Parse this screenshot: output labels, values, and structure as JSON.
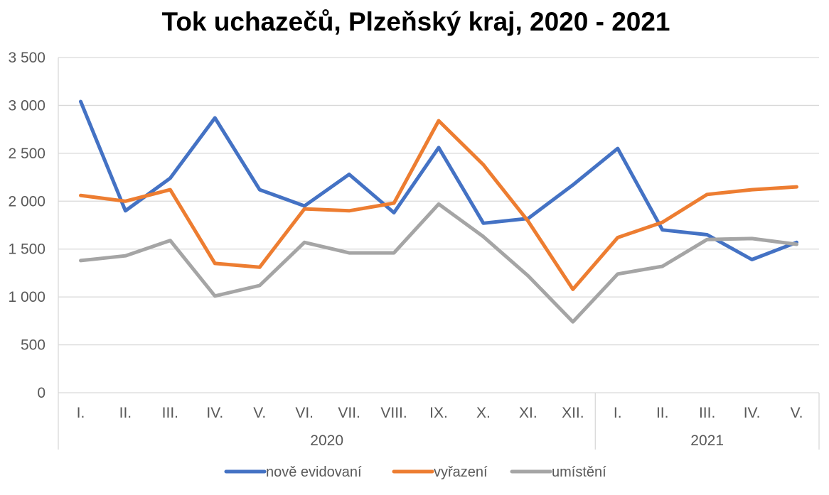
{
  "chart_data": {
    "type": "line",
    "title": "Tok uchazečů, Plzeňský kraj, 2020 - 2021",
    "xlabel": "",
    "ylabel": "",
    "ylim": [
      0,
      3500
    ],
    "y_ticks": [
      0,
      500,
      1000,
      1500,
      2000,
      2500,
      3000,
      3500
    ],
    "y_tick_labels": [
      "0",
      "500",
      "1 000",
      "1 500",
      "2 000",
      "2 500",
      "3 000",
      "3 500"
    ],
    "grid": true,
    "legend_position": "bottom",
    "categories": [
      "I.",
      "II.",
      "III.",
      "IV.",
      "V.",
      "VI.",
      "VII.",
      "VIII.",
      "IX.",
      "X.",
      "XI.",
      "XII.",
      "I.",
      "II.",
      "III.",
      "IV.",
      "V."
    ],
    "groups": [
      {
        "label": "2020",
        "count": 12
      },
      {
        "label": "2021",
        "count": 5
      }
    ],
    "series": [
      {
        "name": "nově evidovaní",
        "color": "#4472c4",
        "values": [
          3040,
          1900,
          2240,
          2870,
          2120,
          1950,
          2280,
          1880,
          2560,
          1770,
          1820,
          2170,
          2550,
          1700,
          1650,
          1390,
          1570
        ]
      },
      {
        "name": "vyřazení",
        "color": "#ed7d31",
        "values": [
          2060,
          2000,
          2120,
          1350,
          1310,
          1920,
          1900,
          1980,
          2840,
          2380,
          1790,
          1080,
          1620,
          1780,
          2070,
          2120,
          2150
        ]
      },
      {
        "name": "umístění",
        "color": "#a5a5a5",
        "values": [
          1380,
          1430,
          1590,
          1010,
          1120,
          1570,
          1460,
          1460,
          1970,
          1630,
          1220,
          740,
          1240,
          1320,
          1600,
          1610,
          1550
        ]
      }
    ]
  }
}
